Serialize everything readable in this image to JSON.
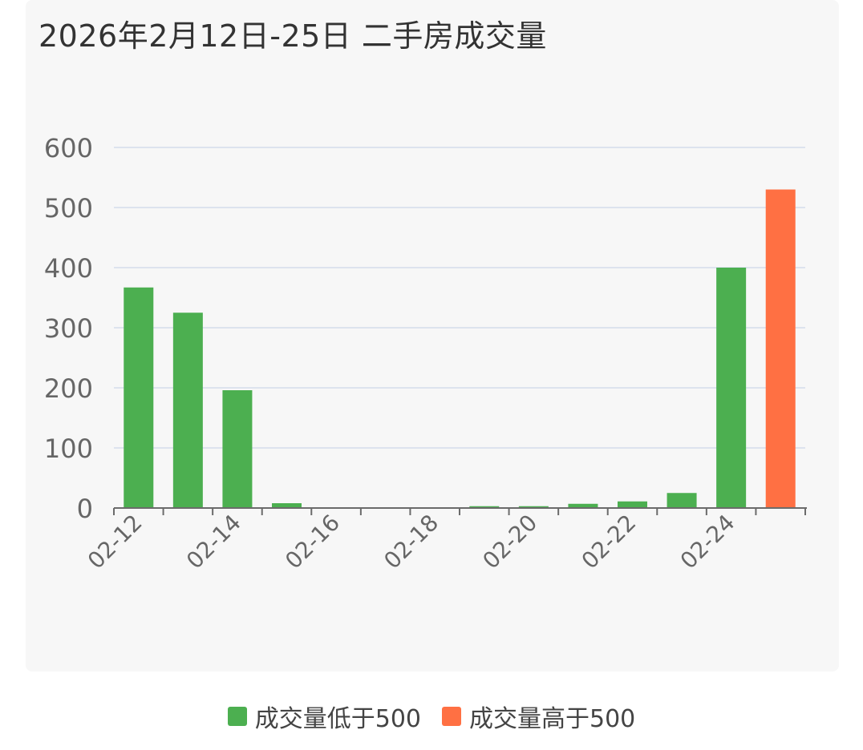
{
  "chart_data": {
    "type": "bar",
    "title": "2026年2月12日-25日 二手房成交量",
    "categories": [
      "02-12",
      "02-13",
      "02-14",
      "02-15",
      "02-16",
      "02-17",
      "02-18",
      "02-19",
      "02-20",
      "02-21",
      "02-22",
      "02-23",
      "02-24",
      "02-25"
    ],
    "x_tick_labels": [
      "02-12",
      "02-14",
      "02-16",
      "02-18",
      "02-20",
      "02-22",
      "02-24"
    ],
    "values": [
      367,
      325,
      196,
      8,
      0,
      0,
      0,
      3,
      3,
      7,
      11,
      25,
      400,
      530
    ],
    "series": [
      {
        "name": "成交量低于500",
        "color": "#4caf50"
      },
      {
        "name": "成交量高于500",
        "color": "#ff7043"
      }
    ],
    "threshold": 500,
    "ylim": [
      0,
      600
    ],
    "y_ticks": [
      0,
      100,
      200,
      300,
      400,
      500,
      600
    ],
    "grid": true,
    "legend_position": "bottom"
  },
  "colors": {
    "grid": "#dde3ee",
    "axis": "#6b6b6b",
    "tick_text": "#666666"
  }
}
